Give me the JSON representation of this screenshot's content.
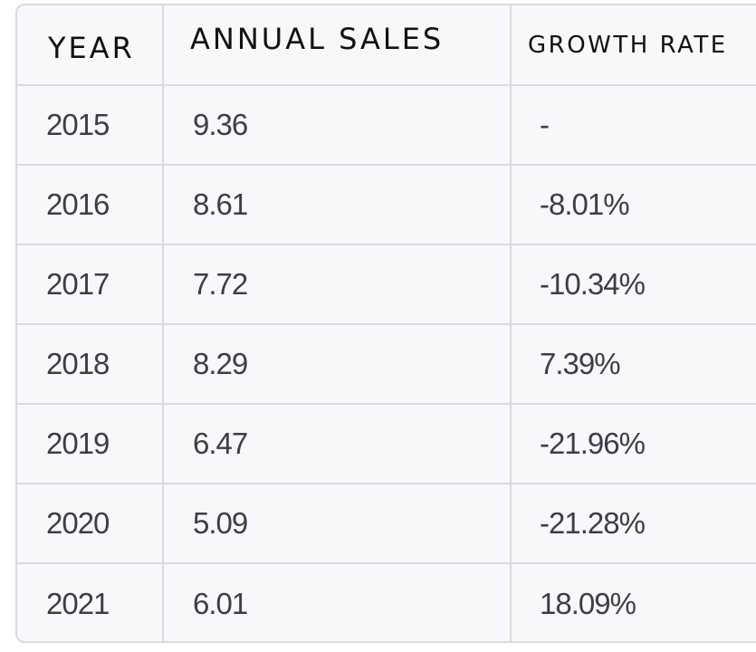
{
  "table": {
    "headers": {
      "year": "YEAR",
      "annual_sales": "ANNUAL SALES",
      "growth_rate": "GROWTH RATE"
    },
    "rows": [
      {
        "year": "2015",
        "annual_sales": "9.36",
        "growth_rate": "-"
      },
      {
        "year": "2016",
        "annual_sales": "8.61",
        "growth_rate": "-8.01%"
      },
      {
        "year": "2017",
        "annual_sales": "7.72",
        "growth_rate": "-10.34%"
      },
      {
        "year": "2018",
        "annual_sales": "8.29",
        "growth_rate": "7.39%"
      },
      {
        "year": "2019",
        "annual_sales": "6.47",
        "growth_rate": "-21.96%"
      },
      {
        "year": "2020",
        "annual_sales": "5.09",
        "growth_rate": "-21.28%"
      },
      {
        "year": "2021",
        "annual_sales": "6.01",
        "growth_rate": "18.09%"
      }
    ]
  },
  "colors": {
    "border": "#d9dae3",
    "background": "#f8f8fa",
    "header_text": "#111111",
    "cell_text": "#3c3d4a"
  }
}
